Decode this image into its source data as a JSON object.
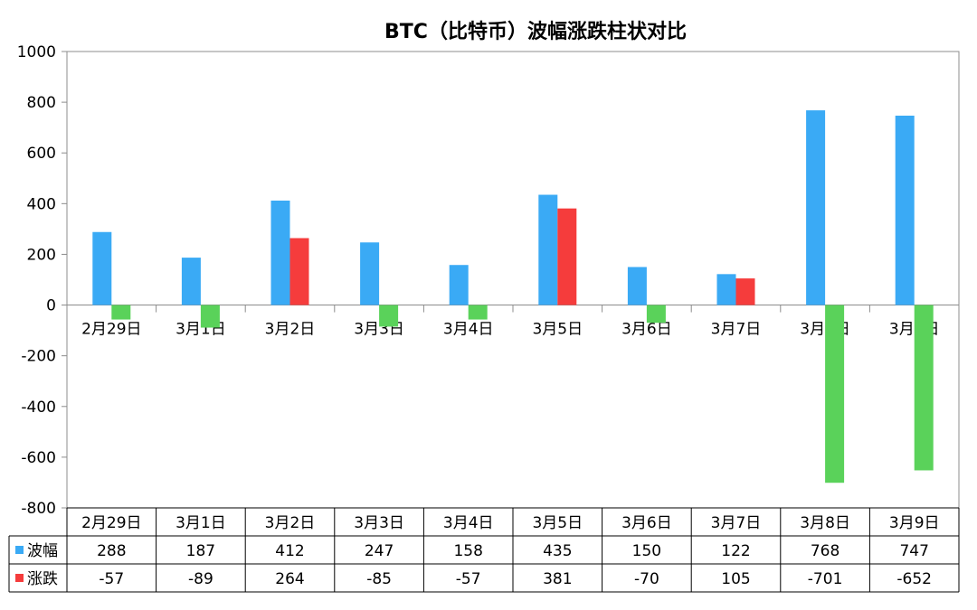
{
  "chart_data": {
    "type": "bar",
    "title": "BTC（比特币）波幅涨跌柱状对比",
    "categories": [
      "2月29日",
      "3月1日",
      "3月2日",
      "3月3日",
      "3月4日",
      "3月5日",
      "3月6日",
      "3月7日",
      "3月8日",
      "3月9日"
    ],
    "series": [
      {
        "name": "波幅",
        "color": "#3aaaf5",
        "values": [
          288,
          187,
          412,
          247,
          158,
          435,
          150,
          122,
          768,
          747
        ]
      },
      {
        "name": "涨跌",
        "color": "#f53c3c",
        "negative_color": "#5ad25a",
        "values": [
          -57,
          -89,
          264,
          -85,
          -57,
          381,
          -70,
          105,
          -701,
          -652
        ]
      }
    ],
    "yticks": [
      1000,
      800,
      600,
      400,
      200,
      0,
      -200,
      -400,
      -600,
      -800
    ],
    "ylim": [
      -800,
      1000
    ],
    "data_table": true,
    "legend_position": "data-table-left",
    "grid": false
  }
}
